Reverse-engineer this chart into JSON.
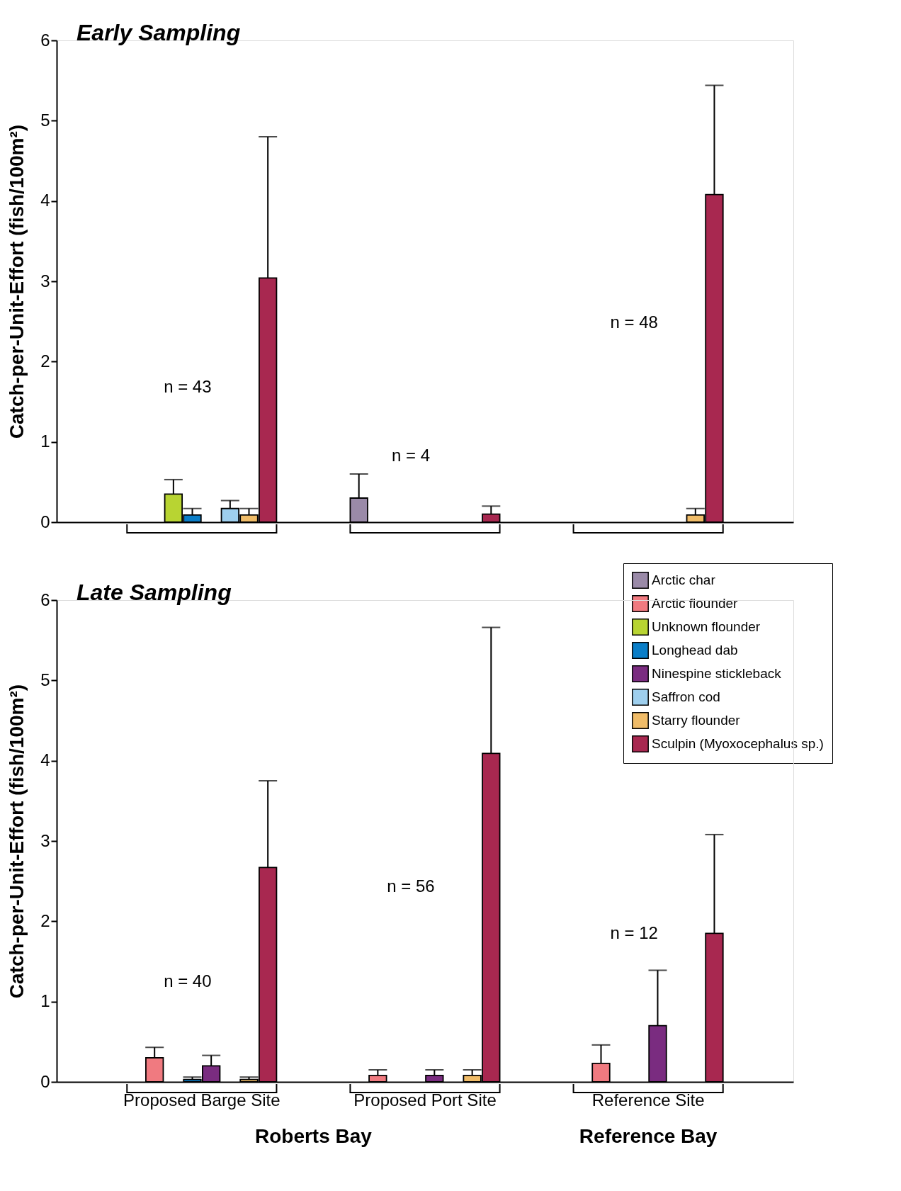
{
  "chart_data": [
    {
      "type": "bar",
      "title": "Early Sampling",
      "ylabel": "Catch-per-Unit-Effort (fish/100m²)",
      "categories": [
        null,
        null,
        null
      ],
      "ylim": [
        0,
        6
      ],
      "yticks": [
        0,
        1,
        2,
        3,
        4,
        5,
        6
      ],
      "grid": false,
      "legend": "bottom right",
      "tick_labels": "y",
      "series": [
        {
          "name": "Arctic char",
          "color": "#9a8aa8",
          "values": [
            null,
            0.3,
            null
          ],
          "errors": [
            null,
            0.3,
            null
          ]
        },
        {
          "name": "Arctic flounder",
          "color": "#f07a80",
          "values": [
            null,
            null,
            null
          ],
          "errors": [
            null,
            null,
            null
          ]
        },
        {
          "name": "Unknown flounder",
          "color": "#b8d432",
          "values": [
            0.35,
            null,
            null
          ],
          "errors": [
            0.18,
            null,
            null
          ]
        },
        {
          "name": "Longhead dab",
          "color": "#0a7ec8",
          "values": [
            0.09,
            null,
            null
          ],
          "errors": [
            0.08,
            null,
            null
          ]
        },
        {
          "name": "Ninespine stickleback",
          "color": "#7a2c80",
          "values": [
            null,
            null,
            null
          ],
          "errors": [
            null,
            null,
            null
          ]
        },
        {
          "name": "Saffron cod",
          "color": "#9ecfee",
          "values": [
            0.17,
            null,
            null
          ],
          "errors": [
            0.1,
            null,
            null
          ]
        },
        {
          "name": "Starry flounder",
          "color": "#f0bc68",
          "values": [
            0.09,
            null,
            0.09
          ],
          "errors": [
            0.08,
            null,
            0.08
          ]
        },
        {
          "name": "Sculpin (Myoxocephalus sp.)",
          "color": "#a82850",
          "values": [
            3.04,
            0.1,
            4.08
          ],
          "errors": [
            1.76,
            0.1,
            1.36
          ]
        }
      ],
      "annotations": [
        "n = 43",
        "n = 4",
        "n = 48"
      ]
    },
    {
      "type": "bar",
      "title": "Late Sampling",
      "ylabel": "Catch-per-Unit-Effort (fish/100m²)",
      "categories": [
        "Proposed Barge Site",
        "Proposed Port Site",
        "Reference Site"
      ],
      "ylim": [
        0,
        6
      ],
      "yticks": [
        0,
        1,
        2,
        3,
        4,
        5,
        6
      ],
      "grid": false,
      "series": [
        {
          "color": "#9a8aa8",
          "values": [
            null,
            null,
            null
          ],
          "errors": [
            null,
            null,
            null
          ]
        },
        {
          "color": "#f07a80",
          "values": [
            0.3,
            0.08,
            0.23
          ],
          "errors": [
            0.13,
            0.07,
            0.23
          ]
        },
        {
          "color": "#b8d432",
          "values": [
            null,
            null,
            null
          ],
          "errors": [
            null,
            null,
            null
          ]
        },
        {
          "color": "#0a7ec8",
          "values": [
            0.03,
            null,
            null
          ],
          "errors": [
            0.03,
            null,
            null
          ]
        },
        {
          "color": "#7a2c80",
          "values": [
            0.2,
            0.08,
            0.7
          ],
          "errors": [
            0.13,
            0.07,
            0.69
          ]
        },
        {
          "color": "#9ecfee",
          "values": [
            null,
            null,
            null
          ],
          "errors": [
            null,
            null,
            null
          ]
        },
        {
          "color": "#f0bc68",
          "values": [
            0.03,
            0.08,
            null
          ],
          "errors": [
            0.03,
            0.07,
            null
          ]
        },
        {
          "color": "#a82850",
          "values": [
            2.67,
            4.09,
            1.85
          ],
          "errors": [
            1.08,
            1.57,
            1.23
          ]
        }
      ],
      "annotations": [
        "n = 40",
        "n = 56",
        "n = 12",
        "Roberts Bay",
        "Reference Bay"
      ]
    }
  ]
}
